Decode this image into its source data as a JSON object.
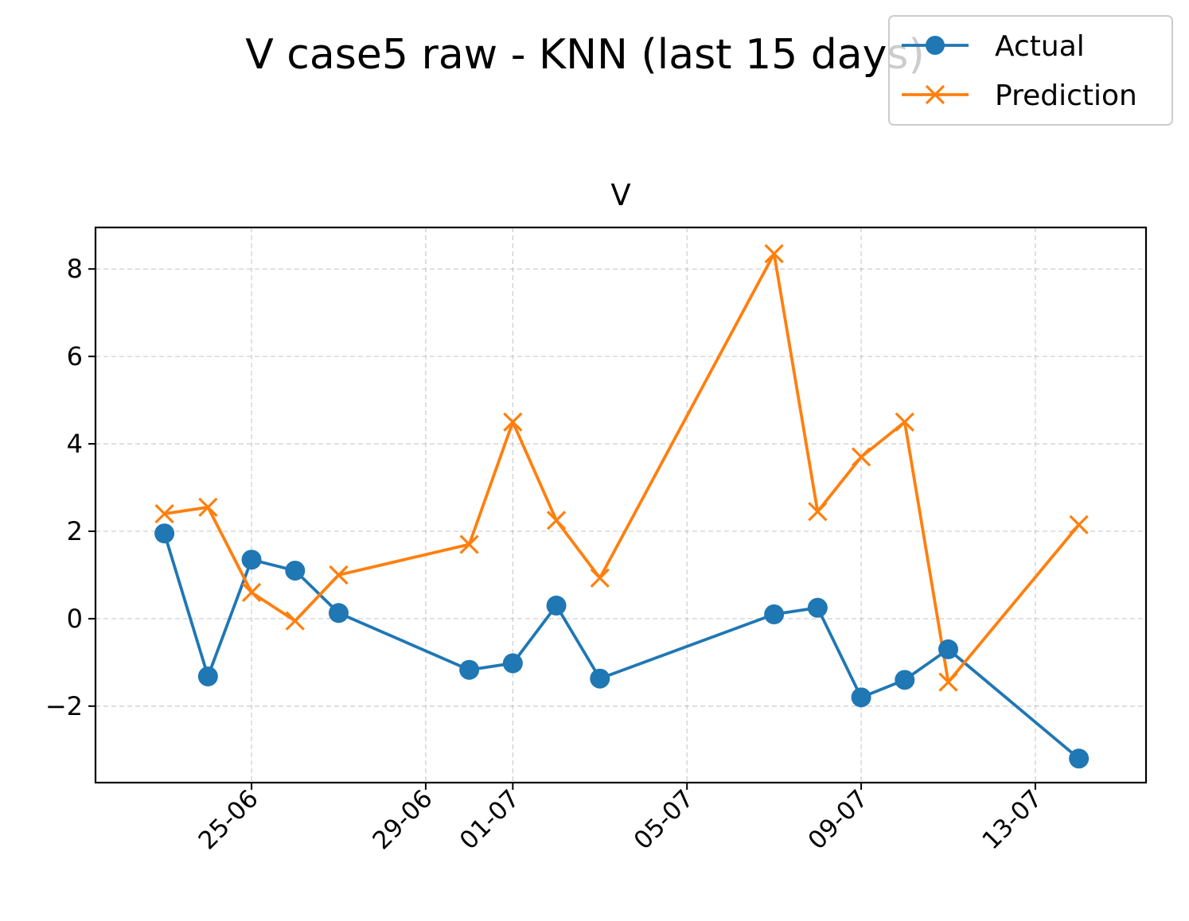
{
  "figure": {
    "suptitle": "V case5 raw - KNN (last 15 days)"
  },
  "chart_data": {
    "type": "line",
    "title": "V",
    "xlabel": "",
    "ylabel": "",
    "x_axis": "date",
    "xlim": [
      "2025-06-21T10:00",
      "2025-07-15T13:00"
    ],
    "ylim": [
      -3.75,
      8.95
    ],
    "xticks": [
      {
        "date": "2025-06-25",
        "label": "25-06"
      },
      {
        "date": "2025-06-29",
        "label": "29-06"
      },
      {
        "date": "2025-07-01",
        "label": "01-07"
      },
      {
        "date": "2025-07-05",
        "label": "05-07"
      },
      {
        "date": "2025-07-09",
        "label": "09-07"
      },
      {
        "date": "2025-07-13",
        "label": "13-07"
      }
    ],
    "yticks": [
      {
        "value": -2,
        "label": "−2"
      },
      {
        "value": 0,
        "label": "0"
      },
      {
        "value": 2,
        "label": "2"
      },
      {
        "value": 4,
        "label": "4"
      },
      {
        "value": 6,
        "label": "6"
      },
      {
        "value": 8,
        "label": "8"
      }
    ],
    "grid": true,
    "legend_position": "top-right",
    "x": [
      "2025-06-23",
      "2025-06-24",
      "2025-06-25",
      "2025-06-26",
      "2025-06-27",
      "2025-06-30",
      "2025-07-01",
      "2025-07-02",
      "2025-07-03",
      "2025-07-07",
      "2025-07-08",
      "2025-07-09",
      "2025-07-10",
      "2025-07-11",
      "2025-07-14"
    ],
    "series": [
      {
        "name": "Actual",
        "color": "#1f77b4",
        "marker": "circle",
        "values": [
          1.95,
          -1.32,
          1.35,
          1.1,
          0.13,
          -1.17,
          -1.02,
          0.3,
          -1.37,
          0.1,
          0.25,
          -1.8,
          -1.4,
          -0.7,
          -3.2
        ]
      },
      {
        "name": "Prediction",
        "color": "#ff7f0e",
        "marker": "x",
        "values": [
          2.4,
          2.55,
          0.6,
          -0.05,
          1.0,
          1.7,
          4.5,
          2.25,
          0.93,
          8.35,
          2.45,
          3.7,
          4.5,
          -1.45,
          2.15
        ]
      }
    ]
  }
}
